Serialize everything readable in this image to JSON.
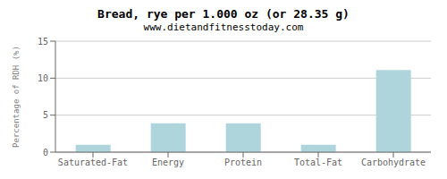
{
  "chart_data": {
    "type": "bar",
    "title": "Bread, rye per 1.000 oz (or 28.35 g)",
    "subtitle": "www.dietandfitnesstoday.com",
    "categories": [
      "Saturated-Fat",
      "Energy",
      "Protein",
      "Total-Fat",
      "Carbohydrate"
    ],
    "values": [
      1.0,
      3.9,
      3.9,
      1.0,
      11.1
    ],
    "color": "#aed4dc",
    "ylabel": "Percentage of RDH (%)",
    "ylim": [
      0,
      15
    ],
    "yticks": [
      0,
      5,
      10,
      15
    ],
    "grid": true
  }
}
